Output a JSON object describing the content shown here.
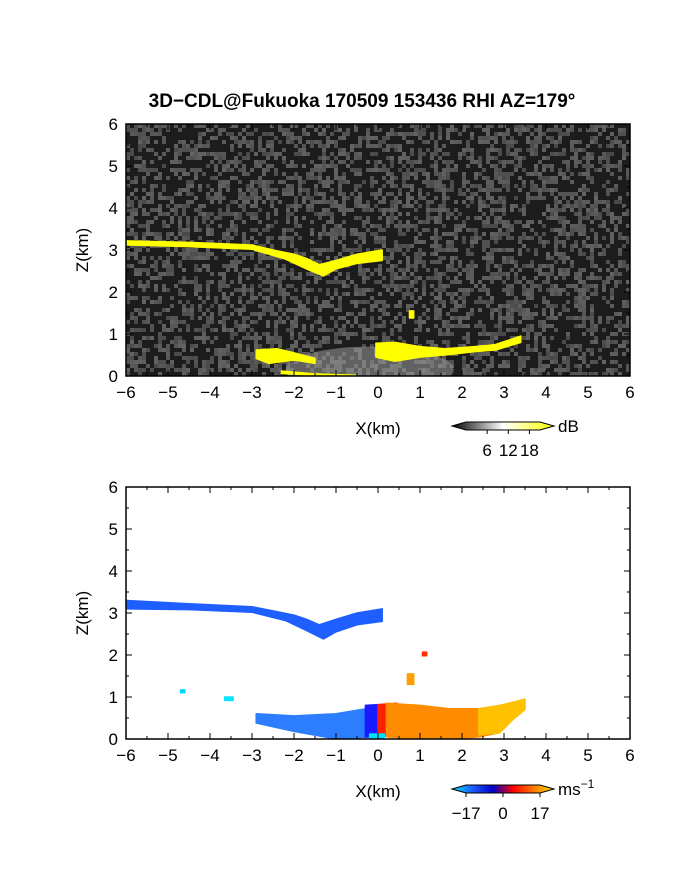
{
  "title": "3D−CDL@Fukuoka 170509 153436 RHI AZ=179°",
  "chart_data": [
    {
      "type": "heatmap",
      "panel": "reflectivity",
      "xlabel": "X(km)",
      "ylabel": "Z(km)",
      "xlim": [
        -6,
        6
      ],
      "ylim": [
        0,
        6
      ],
      "xticks": [
        "−6",
        "−5",
        "−4",
        "−3",
        "−2",
        "−1",
        "0",
        "1",
        "2",
        "3",
        "4",
        "5",
        "6"
      ],
      "yticks": [
        "0",
        "1",
        "2",
        "3",
        "4",
        "5",
        "6"
      ],
      "background": "noise",
      "colorbar": {
        "unit": "dB",
        "ticks": [
          "6",
          "12",
          "18"
        ],
        "range": [
          0,
          21
        ],
        "colors": [
          "#000000",
          "#ffffff",
          "#ffff00"
        ]
      },
      "features": [
        {
          "name": "upper-layer-echo",
          "color": "#ffff00",
          "top": [
            [
              -6,
              3.22
            ],
            [
              -4.5,
              3.18
            ],
            [
              -3,
              3.12
            ],
            [
              -2.5,
              3.0
            ],
            [
              -2.0,
              2.9
            ],
            [
              -1.7,
              2.8
            ],
            [
              -1.4,
              2.65
            ],
            [
              -1.0,
              2.75
            ],
            [
              -0.5,
              2.9
            ],
            [
              0.1,
              3.0
            ]
          ],
          "bottom": [
            [
              0.1,
              2.75
            ],
            [
              -0.5,
              2.68
            ],
            [
              -1.0,
              2.55
            ],
            [
              -1.3,
              2.38
            ],
            [
              -1.7,
              2.55
            ],
            [
              -2.2,
              2.78
            ],
            [
              -3,
              3.02
            ],
            [
              -4.5,
              3.08
            ],
            [
              -6,
              3.12
            ]
          ]
        },
        {
          "name": "lower-left-echo",
          "color": "#ffff00",
          "top": [
            [
              -2.9,
              0.62
            ],
            [
              -2.4,
              0.65
            ],
            [
              -2.0,
              0.55
            ],
            [
              -1.5,
              0.42
            ]
          ],
          "bottom": [
            [
              -1.5,
              0.3
            ],
            [
              -2.0,
              0.38
            ],
            [
              -2.6,
              0.3
            ],
            [
              -2.9,
              0.42
            ]
          ]
        },
        {
          "name": "lower-right-echo",
          "color": "#ffff00",
          "top": [
            [
              -0.05,
              0.78
            ],
            [
              0.4,
              0.8
            ],
            [
              1.0,
              0.7
            ],
            [
              1.6,
              0.65
            ],
            [
              2.3,
              0.7
            ],
            [
              2.8,
              0.75
            ],
            [
              3.4,
              0.95
            ]
          ],
          "bottom": [
            [
              3.4,
              0.8
            ],
            [
              2.8,
              0.62
            ],
            [
              2.3,
              0.58
            ],
            [
              1.6,
              0.5
            ],
            [
              1.0,
              0.45
            ],
            [
              0.4,
              0.35
            ],
            [
              -0.05,
              0.45
            ]
          ]
        },
        {
          "name": "ground-echo",
          "color": "#ffff00",
          "top": [
            [
              -2.3,
              0.12
            ],
            [
              -1.5,
              0.05
            ],
            [
              -0.5,
              0.02
            ]
          ],
          "bottom": [
            [
              -0.5,
              0.0
            ],
            [
              -1.5,
              0.02
            ],
            [
              -2.3,
              0.06
            ]
          ]
        },
        {
          "name": "small-echo",
          "color": "#ffff00",
          "top": [
            [
              0.75,
              1.55
            ],
            [
              0.85,
              1.55
            ]
          ],
          "bottom": [
            [
              0.85,
              1.38
            ],
            [
              0.75,
              1.38
            ]
          ]
        }
      ]
    },
    {
      "type": "heatmap",
      "panel": "doppler-velocity",
      "xlabel": "X(km)",
      "ylabel": "Z(km)",
      "xlim": [
        -6,
        6
      ],
      "ylim": [
        0,
        6
      ],
      "xticks": [
        "−6",
        "−5",
        "−4",
        "−3",
        "−2",
        "−1",
        "0",
        "1",
        "2",
        "3",
        "4",
        "5",
        "6"
      ],
      "yticks": [
        "0",
        "1",
        "2",
        "3",
        "4",
        "5",
        "6"
      ],
      "background": "white",
      "colorbar": {
        "unit": "ms−1",
        "ticks": [
          "−17",
          "0",
          "17"
        ],
        "range": [
          -17,
          17
        ],
        "colors": [
          "#00e5ff",
          "#1e5bff",
          "#0000c8",
          "#ff0000",
          "#ff7a00",
          "#ffe000"
        ]
      },
      "features": [
        {
          "name": "upper-layer-velocity",
          "color": "#1f5fff",
          "top": [
            [
              -6,
              3.3
            ],
            [
              -4.5,
              3.22
            ],
            [
              -3,
              3.15
            ],
            [
              -2.5,
              3.05
            ],
            [
              -2.0,
              2.95
            ],
            [
              -1.7,
              2.85
            ],
            [
              -1.4,
              2.72
            ],
            [
              -1.0,
              2.85
            ],
            [
              -0.5,
              3.0
            ],
            [
              0.1,
              3.1
            ]
          ],
          "bottom": [
            [
              0.1,
              2.8
            ],
            [
              -0.5,
              2.72
            ],
            [
              -1.0,
              2.55
            ],
            [
              -1.3,
              2.38
            ],
            [
              -1.7,
              2.58
            ],
            [
              -2.2,
              2.82
            ],
            [
              -3,
              3.02
            ],
            [
              -4.5,
              3.08
            ],
            [
              -6,
              3.1
            ]
          ]
        },
        {
          "name": "lower-negative-velocity",
          "color": "#2d7dff",
          "top": [
            [
              -2.9,
              0.6
            ],
            [
              -2.0,
              0.55
            ],
            [
              -1.0,
              0.6
            ],
            [
              -0.1,
              0.75
            ]
          ],
          "bottom": [
            [
              -0.1,
              0.05
            ],
            [
              -1.0,
              0.0
            ],
            [
              -2.0,
              0.18
            ],
            [
              -2.9,
              0.38
            ]
          ]
        },
        {
          "name": "near-zero-velocity",
          "color": "#1a1aff",
          "top": [
            [
              -0.3,
              0.8
            ],
            [
              0.0,
              0.82
            ]
          ],
          "bottom": [
            [
              0.0,
              0.05
            ],
            [
              -0.3,
              0.05
            ]
          ]
        },
        {
          "name": "red-near-radar",
          "color": "#ff2000",
          "top": [
            [
              0.0,
              0.82
            ],
            [
              0.45,
              0.85
            ]
          ],
          "bottom": [
            [
              0.45,
              0.1
            ],
            [
              0.0,
              0.05
            ]
          ]
        },
        {
          "name": "lower-positive-velocity",
          "color": "#ff8c00",
          "top": [
            [
              0.2,
              0.85
            ],
            [
              1.0,
              0.8
            ],
            [
              1.7,
              0.72
            ],
            [
              2.4,
              0.72
            ],
            [
              2.9,
              0.78
            ]
          ],
          "bottom": [
            [
              2.9,
              0.15
            ],
            [
              2.4,
              0.05
            ],
            [
              1.7,
              0.0
            ],
            [
              1.0,
              0.0
            ],
            [
              0.2,
              0.05
            ]
          ]
        },
        {
          "name": "lower-high-positive-velocity",
          "color": "#ffc000",
          "top": [
            [
              2.4,
              0.72
            ],
            [
              2.9,
              0.8
            ],
            [
              3.3,
              0.9
            ],
            [
              3.5,
              0.95
            ]
          ],
          "bottom": [
            [
              3.5,
              0.7
            ],
            [
              3.2,
              0.45
            ],
            [
              2.9,
              0.15
            ],
            [
              2.4,
              0.1
            ]
          ]
        },
        {
          "name": "radar-site-cyan",
          "color": "#00e0ff",
          "top": [
            [
              -0.2,
              0.12
            ],
            [
              0.15,
              0.12
            ]
          ],
          "bottom": [
            [
              0.15,
              0.0
            ],
            [
              -0.2,
              0.0
            ]
          ]
        },
        {
          "name": "isolated-cyan-1",
          "color": "#00d8ff",
          "top": [
            [
              -4.7,
              1.17
            ],
            [
              -4.6,
              1.17
            ]
          ],
          "bottom": [
            [
              -4.6,
              1.1
            ],
            [
              -4.7,
              1.1
            ]
          ]
        },
        {
          "name": "isolated-cyan-2",
          "color": "#00e8ff",
          "top": [
            [
              -3.65,
              1.0
            ],
            [
              -3.45,
              1.0
            ]
          ],
          "bottom": [
            [
              -3.45,
              0.92
            ],
            [
              -3.65,
              0.92
            ]
          ]
        },
        {
          "name": "isolated-red",
          "color": "#ff3000",
          "top": [
            [
              1.06,
              2.07
            ],
            [
              1.16,
              2.07
            ]
          ],
          "bottom": [
            [
              1.16,
              1.98
            ],
            [
              1.06,
              1.98
            ]
          ]
        },
        {
          "name": "isolated-orange",
          "color": "#ffa000",
          "top": [
            [
              0.7,
              1.55
            ],
            [
              0.85,
              1.55
            ]
          ],
          "bottom": [
            [
              0.85,
              1.3
            ],
            [
              0.7,
              1.3
            ]
          ]
        }
      ]
    }
  ]
}
